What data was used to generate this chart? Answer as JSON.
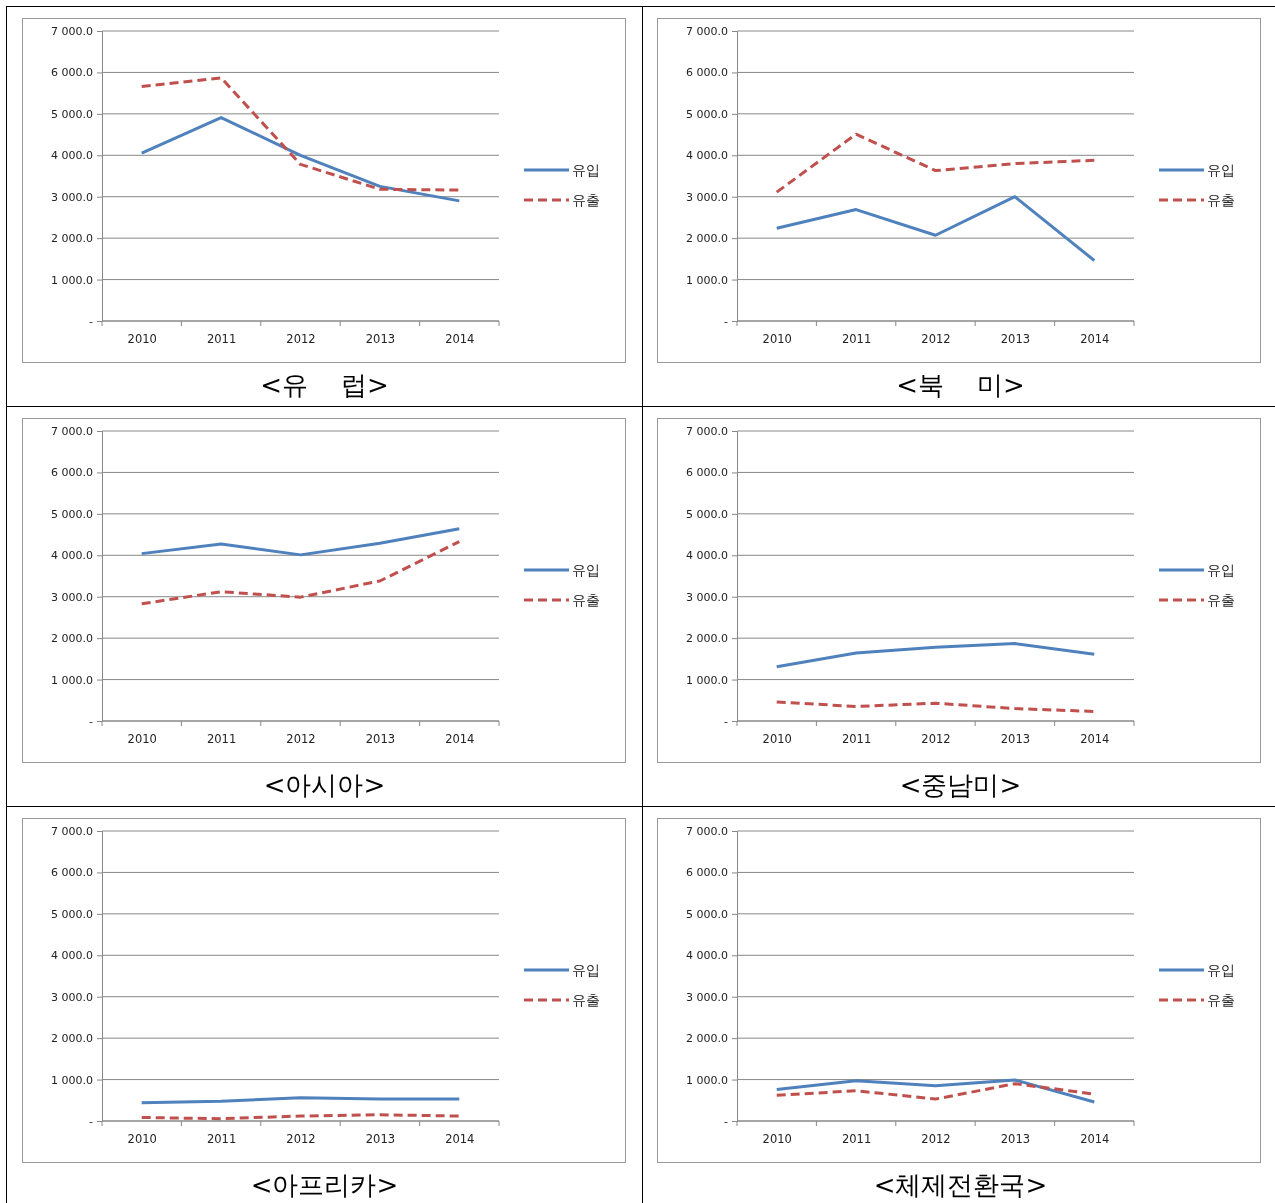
{
  "chart_data": [
    {
      "type": "line",
      "title": "<유    럽>",
      "categories": [
        "2010",
        "2011",
        "2012",
        "2013",
        "2014"
      ],
      "ylim": [
        0,
        7000
      ],
      "yticks": [
        {
          "value": 0,
          "label": "-"
        },
        {
          "value": 1000,
          "label": "1 000.0"
        },
        {
          "value": 2000,
          "label": "2 000.0"
        },
        {
          "value": 3000,
          "label": "3 000.0"
        },
        {
          "value": 4000,
          "label": "4 000.0"
        },
        {
          "value": 5000,
          "label": "5 000.0"
        },
        {
          "value": 6000,
          "label": "6 000.0"
        },
        {
          "value": 7000,
          "label": "7 000.0"
        }
      ],
      "grid": "y",
      "legend": "right",
      "marker": "none",
      "series": [
        {
          "name": "유입",
          "color": "#4f81bd",
          "line_style": "solid",
          "values": [
            4050,
            4910,
            4000,
            3250,
            2900
          ]
        },
        {
          "name": "유출",
          "color": "#c0504d",
          "line_style": "dashed",
          "values": [
            5660,
            5870,
            3780,
            3180,
            3160
          ]
        }
      ]
    },
    {
      "type": "line",
      "title": "<북    미>",
      "categories": [
        "2010",
        "2011",
        "2012",
        "2013",
        "2014"
      ],
      "ylim": [
        0,
        7000
      ],
      "yticks": [
        {
          "value": 0,
          "label": "-"
        },
        {
          "value": 1000,
          "label": "1 000.0"
        },
        {
          "value": 2000,
          "label": "2 000.0"
        },
        {
          "value": 3000,
          "label": "3 000.0"
        },
        {
          "value": 4000,
          "label": "4 000.0"
        },
        {
          "value": 5000,
          "label": "5 000.0"
        },
        {
          "value": 6000,
          "label": "6 000.0"
        },
        {
          "value": 7000,
          "label": "7 000.0"
        }
      ],
      "grid": "y",
      "legend": "right",
      "marker": "none",
      "series": [
        {
          "name": "유입",
          "color": "#4f81bd",
          "line_style": "solid",
          "values": [
            2240,
            2690,
            2070,
            3000,
            1460
          ]
        },
        {
          "name": "유출",
          "color": "#c0504d",
          "line_style": "dashed",
          "values": [
            3110,
            4510,
            3630,
            3800,
            3880
          ]
        }
      ]
    },
    {
      "type": "line",
      "title": "<아시아>",
      "categories": [
        "2010",
        "2011",
        "2012",
        "2013",
        "2014"
      ],
      "ylim": [
        0,
        7000
      ],
      "yticks": [
        {
          "value": 0,
          "label": "-"
        },
        {
          "value": 1000,
          "label": "1 000.0"
        },
        {
          "value": 2000,
          "label": "2 000.0"
        },
        {
          "value": 3000,
          "label": "3 000.0"
        },
        {
          "value": 4000,
          "label": "4 000.0"
        },
        {
          "value": 5000,
          "label": "5 000.0"
        },
        {
          "value": 6000,
          "label": "6 000.0"
        },
        {
          "value": 7000,
          "label": "7 000.0"
        }
      ],
      "grid": "y",
      "legend": "right",
      "marker": "none",
      "series": [
        {
          "name": "유입",
          "color": "#4f81bd",
          "line_style": "solid",
          "values": [
            4040,
            4270,
            4010,
            4290,
            4640
          ]
        },
        {
          "name": "유출",
          "color": "#c0504d",
          "line_style": "dashed",
          "values": [
            2830,
            3120,
            2990,
            3380,
            4330
          ]
        }
      ]
    },
    {
      "type": "line",
      "title": "<중남미>",
      "categories": [
        "2010",
        "2011",
        "2012",
        "2013",
        "2014"
      ],
      "ylim": [
        0,
        7000
      ],
      "yticks": [
        {
          "value": 0,
          "label": "-"
        },
        {
          "value": 1000,
          "label": "1 000.0"
        },
        {
          "value": 2000,
          "label": "2 000.0"
        },
        {
          "value": 3000,
          "label": "3 000.0"
        },
        {
          "value": 4000,
          "label": "4 000.0"
        },
        {
          "value": 5000,
          "label": "5 000.0"
        },
        {
          "value": 6000,
          "label": "6 000.0"
        },
        {
          "value": 7000,
          "label": "7 000.0"
        }
      ],
      "grid": "y",
      "legend": "right",
      "marker": "none",
      "series": [
        {
          "name": "유입",
          "color": "#4f81bd",
          "line_style": "solid",
          "values": [
            1310,
            1640,
            1780,
            1870,
            1610
          ]
        },
        {
          "name": "유출",
          "color": "#c0504d",
          "line_style": "dashed",
          "values": [
            460,
            350,
            430,
            300,
            230
          ]
        }
      ]
    },
    {
      "type": "line",
      "title": "<아프리카>",
      "categories": [
        "2010",
        "2011",
        "2012",
        "2013",
        "2014"
      ],
      "ylim": [
        0,
        7000
      ],
      "yticks": [
        {
          "value": 0,
          "label": "-"
        },
        {
          "value": 1000,
          "label": "1 000.0"
        },
        {
          "value": 2000,
          "label": "2 000.0"
        },
        {
          "value": 3000,
          "label": "3 000.0"
        },
        {
          "value": 4000,
          "label": "4 000.0"
        },
        {
          "value": 5000,
          "label": "5 000.0"
        },
        {
          "value": 6000,
          "label": "6 000.0"
        },
        {
          "value": 7000,
          "label": "7 000.0"
        }
      ],
      "grid": "y",
      "legend": "right",
      "marker": "none",
      "series": [
        {
          "name": "유입",
          "color": "#4f81bd",
          "line_style": "solid",
          "values": [
            440,
            475,
            560,
            530,
            530
          ]
        },
        {
          "name": "유출",
          "color": "#c0504d",
          "line_style": "dashed",
          "values": [
            85,
            55,
            120,
            150,
            120
          ]
        }
      ]
    },
    {
      "type": "line",
      "title": "<체제전환국>",
      "categories": [
        "2010",
        "2011",
        "2012",
        "2013",
        "2014"
      ],
      "ylim": [
        0,
        7000
      ],
      "yticks": [
        {
          "value": 0,
          "label": "-"
        },
        {
          "value": 1000,
          "label": "1 000.0"
        },
        {
          "value": 2000,
          "label": "2 000.0"
        },
        {
          "value": 3000,
          "label": "3 000.0"
        },
        {
          "value": 4000,
          "label": "4 000.0"
        },
        {
          "value": 5000,
          "label": "5 000.0"
        },
        {
          "value": 6000,
          "label": "6 000.0"
        },
        {
          "value": 7000,
          "label": "7 000.0"
        }
      ],
      "grid": "y",
      "legend": "right",
      "marker": "none",
      "series": [
        {
          "name": "유입",
          "color": "#4f81bd",
          "line_style": "solid",
          "values": [
            760,
            970,
            850,
            990,
            460
          ]
        },
        {
          "name": "유출",
          "color": "#c0504d",
          "line_style": "dashed",
          "values": [
            620,
            730,
            530,
            900,
            650
          ]
        }
      ]
    }
  ]
}
